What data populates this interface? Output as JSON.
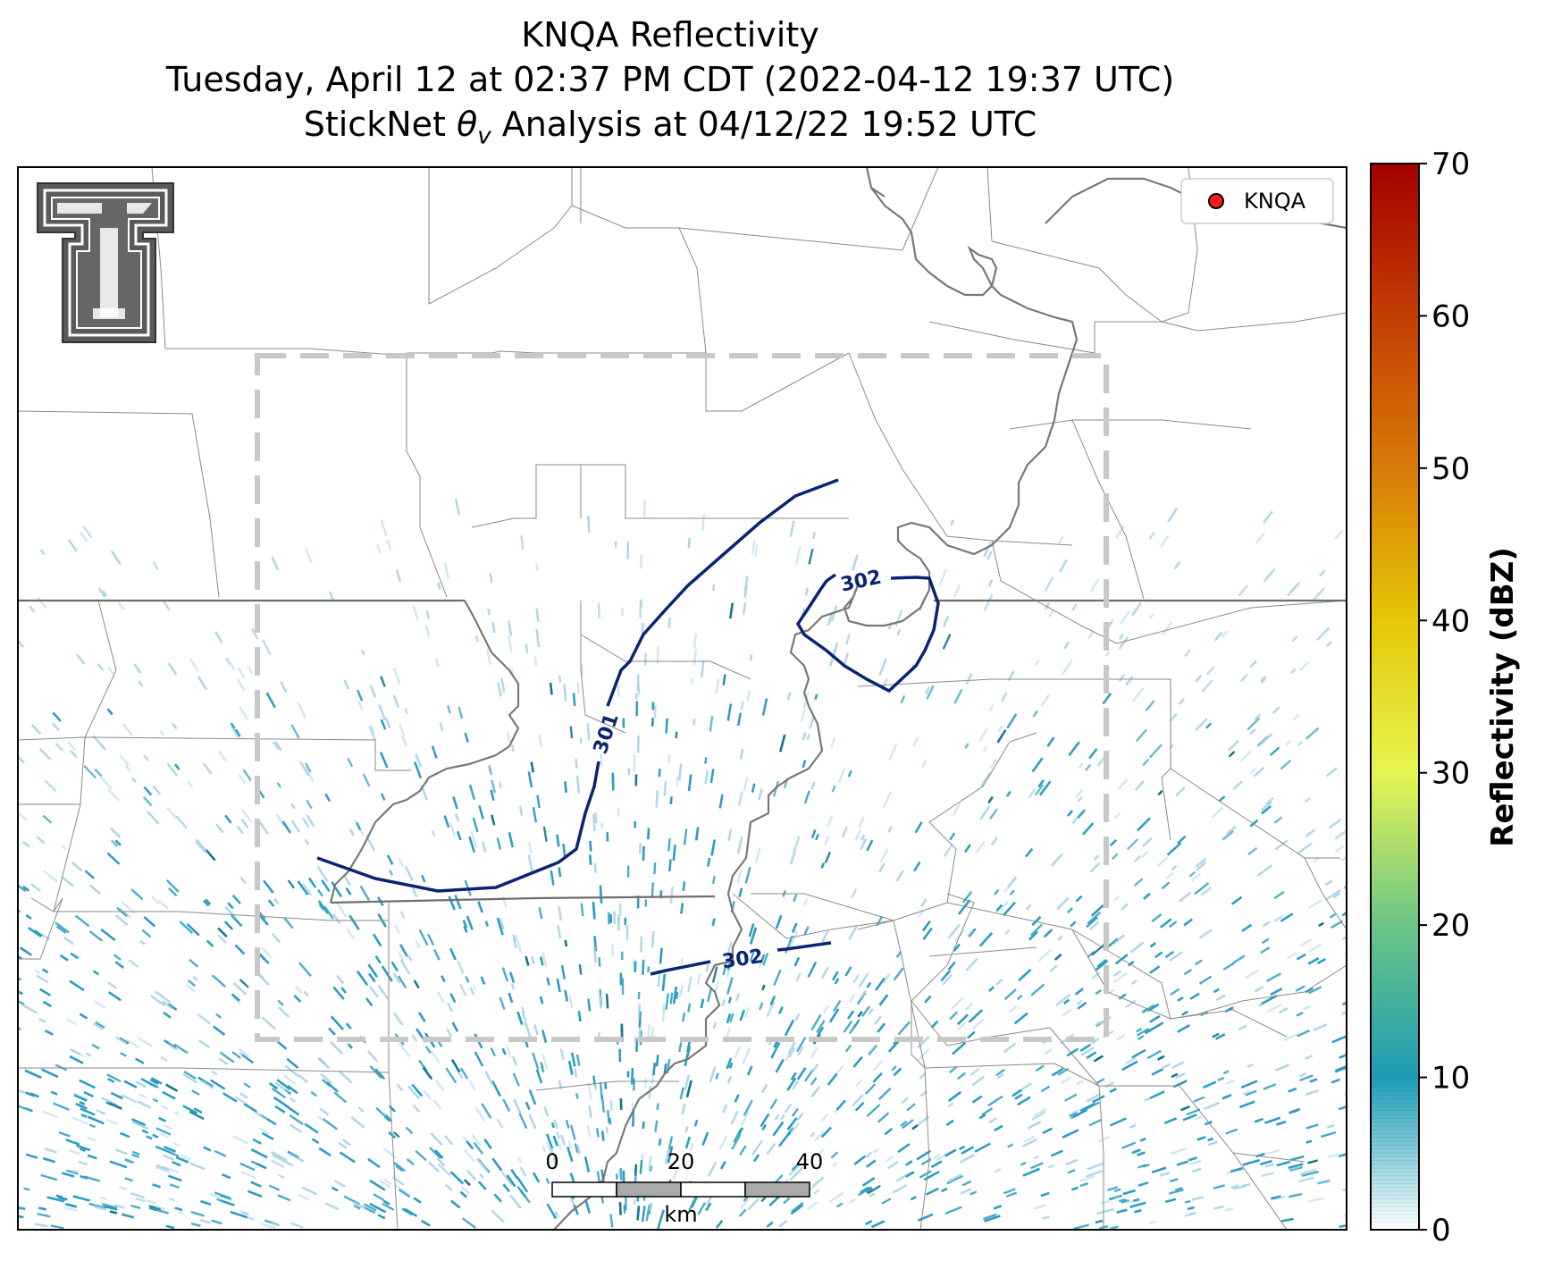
{
  "title": {
    "line1": "KNQA Reflectivity",
    "line2": "Tuesday, April 12 at 02:37 PM CDT (2022-04-12 19:37 UTC)",
    "line3_prefix": "StickNet ",
    "line3_theta": "θ",
    "line3_sub": "v",
    "line3_suffix": " Analysis at 04/12/22 19:52 UTC"
  },
  "legend": {
    "station": "KNQA",
    "marker_color": "#ff1a1a"
  },
  "colorbar": {
    "label": "Reflectivity (dBZ)",
    "ticks": [
      "0",
      "10",
      "20",
      "30",
      "40",
      "50",
      "60",
      "70"
    ],
    "min": 0,
    "max": 70,
    "stops": [
      "#ffffff",
      "#1e9bb5",
      "#6cc487",
      "#e6f552",
      "#e5c707",
      "#d97a07",
      "#c43e04",
      "#a30000"
    ]
  },
  "contours": [
    {
      "value": 301,
      "label": "301"
    },
    {
      "value": 302,
      "label": "302"
    },
    {
      "value": 302,
      "label": "302"
    }
  ],
  "scale_bar": {
    "ticks": [
      "0",
      "20",
      "40"
    ],
    "unit": "km"
  },
  "logo": {
    "name": "Texas Tech double-T logo"
  },
  "colors": {
    "contour": "#0a2472",
    "state_border": "#7a7a7a",
    "county_border": "#8a8a8a",
    "river": "#7a7a7a",
    "analysis_box": "#c8c8c8",
    "echo_light": "#a9d4e6",
    "echo_mid": "#2a9dbf",
    "echo_dark": "#14788f"
  }
}
